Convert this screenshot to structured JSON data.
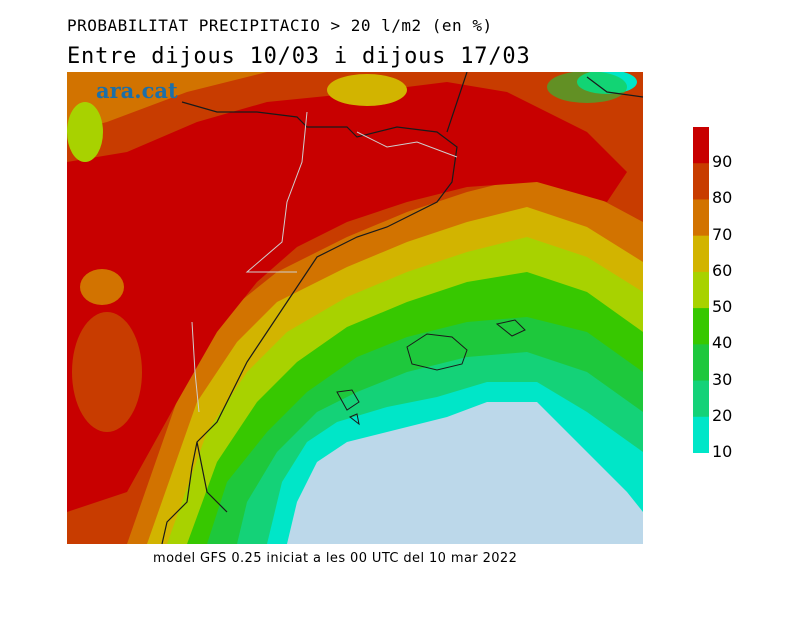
{
  "title": {
    "line1": "PROBABILITAT PRECIPITACIO > 20 l/m2 (en %)",
    "line2": "Entre dijous 10/03 i dijous 17/03"
  },
  "watermark": "ara.cat",
  "footer": "model GFS 0.25 iniciat a les 00 UTC del 10 mar 2022",
  "legend": {
    "levels": [
      {
        "label": "90",
        "color": "#c80000"
      },
      {
        "label": "80",
        "color": "#c83c00"
      },
      {
        "label": "70",
        "color": "#d27300"
      },
      {
        "label": "60",
        "color": "#d2b400"
      },
      {
        "label": "50",
        "color": "#a8d200"
      },
      {
        "label": "40",
        "color": "#37c800"
      },
      {
        "label": "30",
        "color": "#1ec83c"
      },
      {
        "label": "20",
        "color": "#14d278"
      },
      {
        "label": "10",
        "color": "#00e6c8"
      }
    ],
    "below_min_color": "#bcd8ea"
  }
}
